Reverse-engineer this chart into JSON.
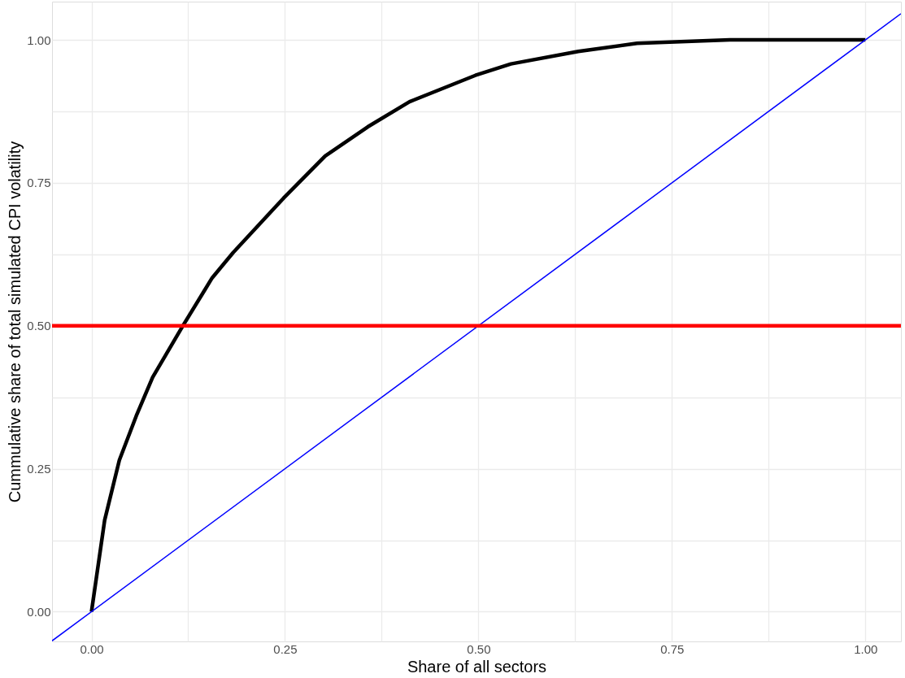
{
  "chart_data": {
    "type": "line",
    "xlabel": "Share of all sectors",
    "ylabel": "Cummulative share of total simulated CPI volatility",
    "xlim": [
      -0.051,
      1.046
    ],
    "ylim": [
      -0.052,
      1.067
    ],
    "xticks": [
      {
        "value": 0,
        "label": "0.00"
      },
      {
        "value": 0.125,
        "label": null
      },
      {
        "value": 0.25,
        "label": "0.25"
      },
      {
        "value": 0.375,
        "label": null
      },
      {
        "value": 0.5,
        "label": "0.50"
      },
      {
        "value": 0.625,
        "label": null
      },
      {
        "value": 0.75,
        "label": "0.75"
      },
      {
        "value": 0.875,
        "label": null
      },
      {
        "value": 1,
        "label": "1.00"
      }
    ],
    "yticks": [
      {
        "value": 0,
        "label": "0.00"
      },
      {
        "value": 0.125,
        "label": null
      },
      {
        "value": 0.25,
        "label": "0.25"
      },
      {
        "value": 0.375,
        "label": null
      },
      {
        "value": 0.5,
        "label": "0.50"
      },
      {
        "value": 0.625,
        "label": null
      },
      {
        "value": 0.75,
        "label": "0.75"
      },
      {
        "value": 0.875,
        "label": null
      },
      {
        "value": 1,
        "label": "1.00"
      }
    ],
    "grid": true,
    "series": [
      {
        "color": "#000000",
        "x": [
          0,
          0.017,
          0.036,
          0.058,
          0.079,
          0.118,
          0.156,
          0.183,
          0.248,
          0.302,
          0.357,
          0.411,
          0.496,
          0.542,
          0.629,
          0.705,
          0.825,
          1.0
        ],
        "values": [
          0,
          0.16,
          0.265,
          0.343,
          0.41,
          0.5,
          0.584,
          0.628,
          0.723,
          0.797,
          0.848,
          0.892,
          0.938,
          0.958,
          0.98,
          0.994,
          1.0,
          1.0
        ]
      },
      {
        "color": "#0000ff",
        "x": [
          -0.051,
          1.046
        ],
        "values": [
          -0.051,
          1.046
        ]
      }
    ],
    "ref_lines": [
      {
        "axis": "y",
        "value": 0.5,
        "color": "#ff0000"
      }
    ]
  }
}
